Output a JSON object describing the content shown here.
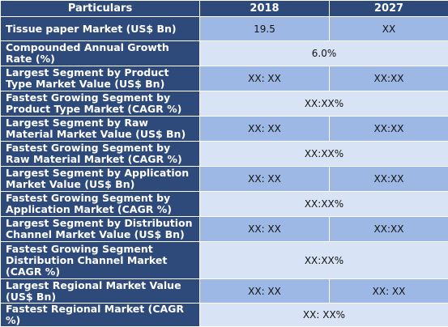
{
  "header": {
    "col1": "Particulars",
    "col2": "2018",
    "col3": "2027"
  },
  "rows": [
    {
      "label": "Tissue paper Market (US$ Bn)",
      "v2018": "19.5",
      "v2027": "XX"
    },
    {
      "label": "Compounded Annual Growth Rate (%)",
      "merged": "6.0%"
    },
    {
      "label": "Largest Segment by Product Type Market Value (US$ Bn)",
      "v2018": "XX: XX",
      "v2027": "XX:XX"
    },
    {
      "label": "Fastest Growing Segment by Product Type Market (CAGR %)",
      "merged": "XX:XX%"
    },
    {
      "label": "Largest Segment by Raw Material Market Value (US$ Bn)",
      "v2018": "XX: XX",
      "v2027": "XX:XX"
    },
    {
      "label": "Fastest Growing Segment by Raw Material Market (CAGR %)",
      "merged": "XX:XX%"
    },
    {
      "label": "Largest Segment by Application Market Value (US$ Bn)",
      "v2018": "XX: XX",
      "v2027": "XX:XX"
    },
    {
      "label": "Fastest Growing Segment by Application Market (CAGR %)",
      "merged": "XX:XX%"
    },
    {
      "label": "Largest Segment by Distribution Channel Market Value (US$ Bn)",
      "v2018": "XX: XX",
      "v2027": "XX:XX"
    },
    {
      "label": "Fastest Growing Segment Distribution Channel Market (CAGR %)",
      "merged": "XX:XX%"
    },
    {
      "label": "Largest Regional Market Value (US$ Bn)",
      "v2018": "XX: XX",
      "v2027": "XX: XX"
    },
    {
      "label": "Fastest Regional Market (CAGR %)",
      "merged": "XX: XX%"
    }
  ]
}
